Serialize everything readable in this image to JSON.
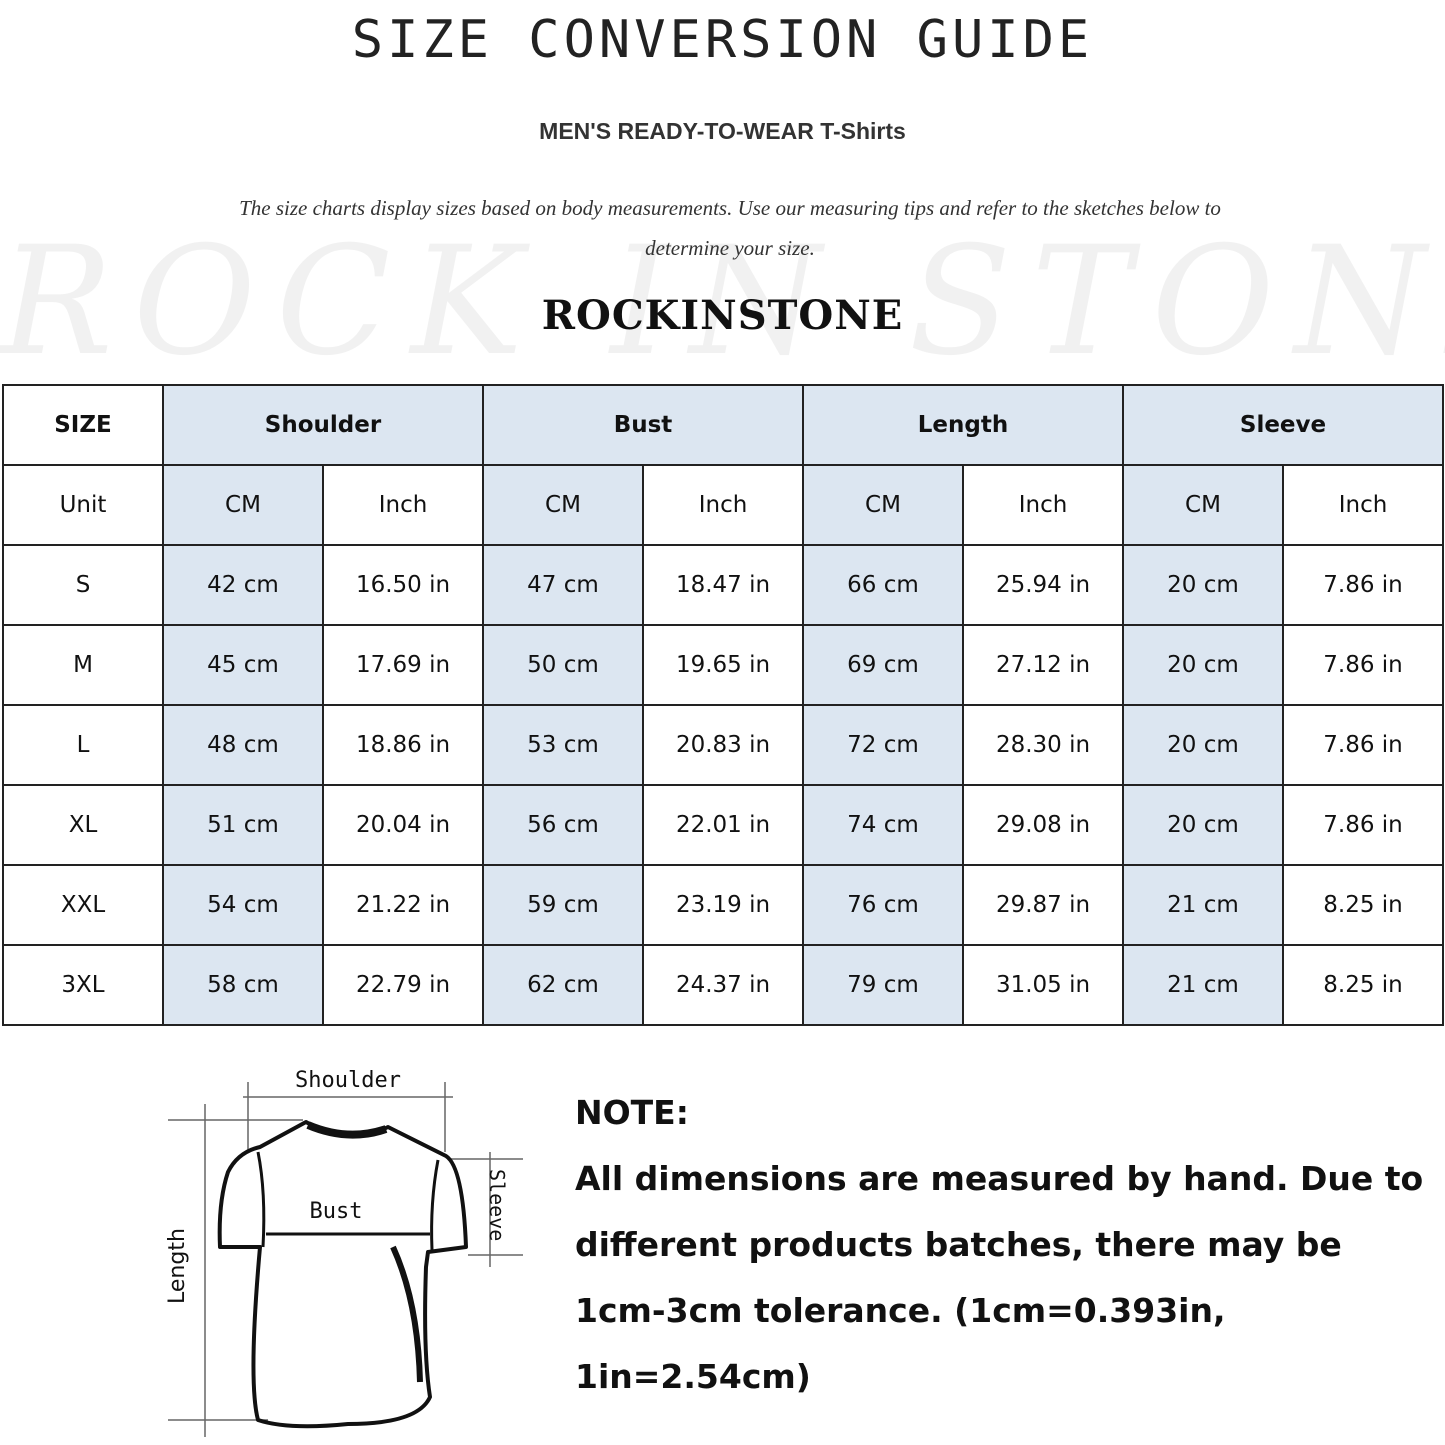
{
  "header": {
    "title": "SIZE CONVERSION GUIDE",
    "subtitle": "MEN'S READY-TO-WEAR T-Shirts",
    "intro": "The size charts display sizes based on body measurements. Use our measuring tips and refer to the sketches below to determine your size.",
    "watermark": "ROCK IN STONE",
    "brand": "ROCKINSTONE"
  },
  "colors": {
    "header_cell": "#dce6f1",
    "border": "#222222"
  },
  "table": {
    "size_label": "SIZE",
    "unit_label": "Unit",
    "groups": [
      "Shoulder",
      "Bust",
      "Length",
      "Sleeve"
    ],
    "units": [
      "CM",
      "Inch",
      "CM",
      "Inch",
      "CM",
      "Inch",
      "CM",
      "Inch"
    ],
    "rows": [
      {
        "size": "S",
        "values": [
          "42 cm",
          "16.50 in",
          "47 cm",
          "18.47  in",
          "66 cm",
          "25.94  in",
          "20 cm",
          "7.86  in"
        ]
      },
      {
        "size": "M",
        "values": [
          "45 cm",
          "17.69  in",
          "50 cm",
          "19.65  in",
          "69 cm",
          "27.12  in",
          "20 cm",
          "7.86  in"
        ]
      },
      {
        "size": "L",
        "values": [
          "48 cm",
          "18.86  in",
          "53 cm",
          "20.83  in",
          "72 cm",
          "28.30  in",
          "20 cm",
          "7.86  in"
        ]
      },
      {
        "size": "XL",
        "values": [
          "51 cm",
          "20.04  in",
          "56 cm",
          "22.01  in",
          "74 cm",
          "29.08  in",
          "20 cm",
          "7.86  in"
        ]
      },
      {
        "size": "XXL",
        "values": [
          "54 cm",
          "21.22  in",
          "59 cm",
          "23.19  in",
          "76 cm",
          "29.87  in",
          "21 cm",
          "8.25  in"
        ]
      },
      {
        "size": "3XL",
        "values": [
          "58 cm",
          "22.79  in",
          "62 cm",
          "24.37  in",
          "79 cm",
          "31.05  in",
          "21 cm",
          "8.25  in"
        ]
      }
    ]
  },
  "sketch": {
    "shoulder": "Shoulder",
    "bust": "Bust",
    "sleeve": "Sleeve",
    "length": "Length"
  },
  "note": {
    "heading": "NOTE:",
    "lines": [
      "All dimensions are measured by hand. Due to",
      "different products batches, there may be",
      "1cm-3cm tolerance. (1cm=0.393in, 1in=2.54cm)"
    ]
  }
}
